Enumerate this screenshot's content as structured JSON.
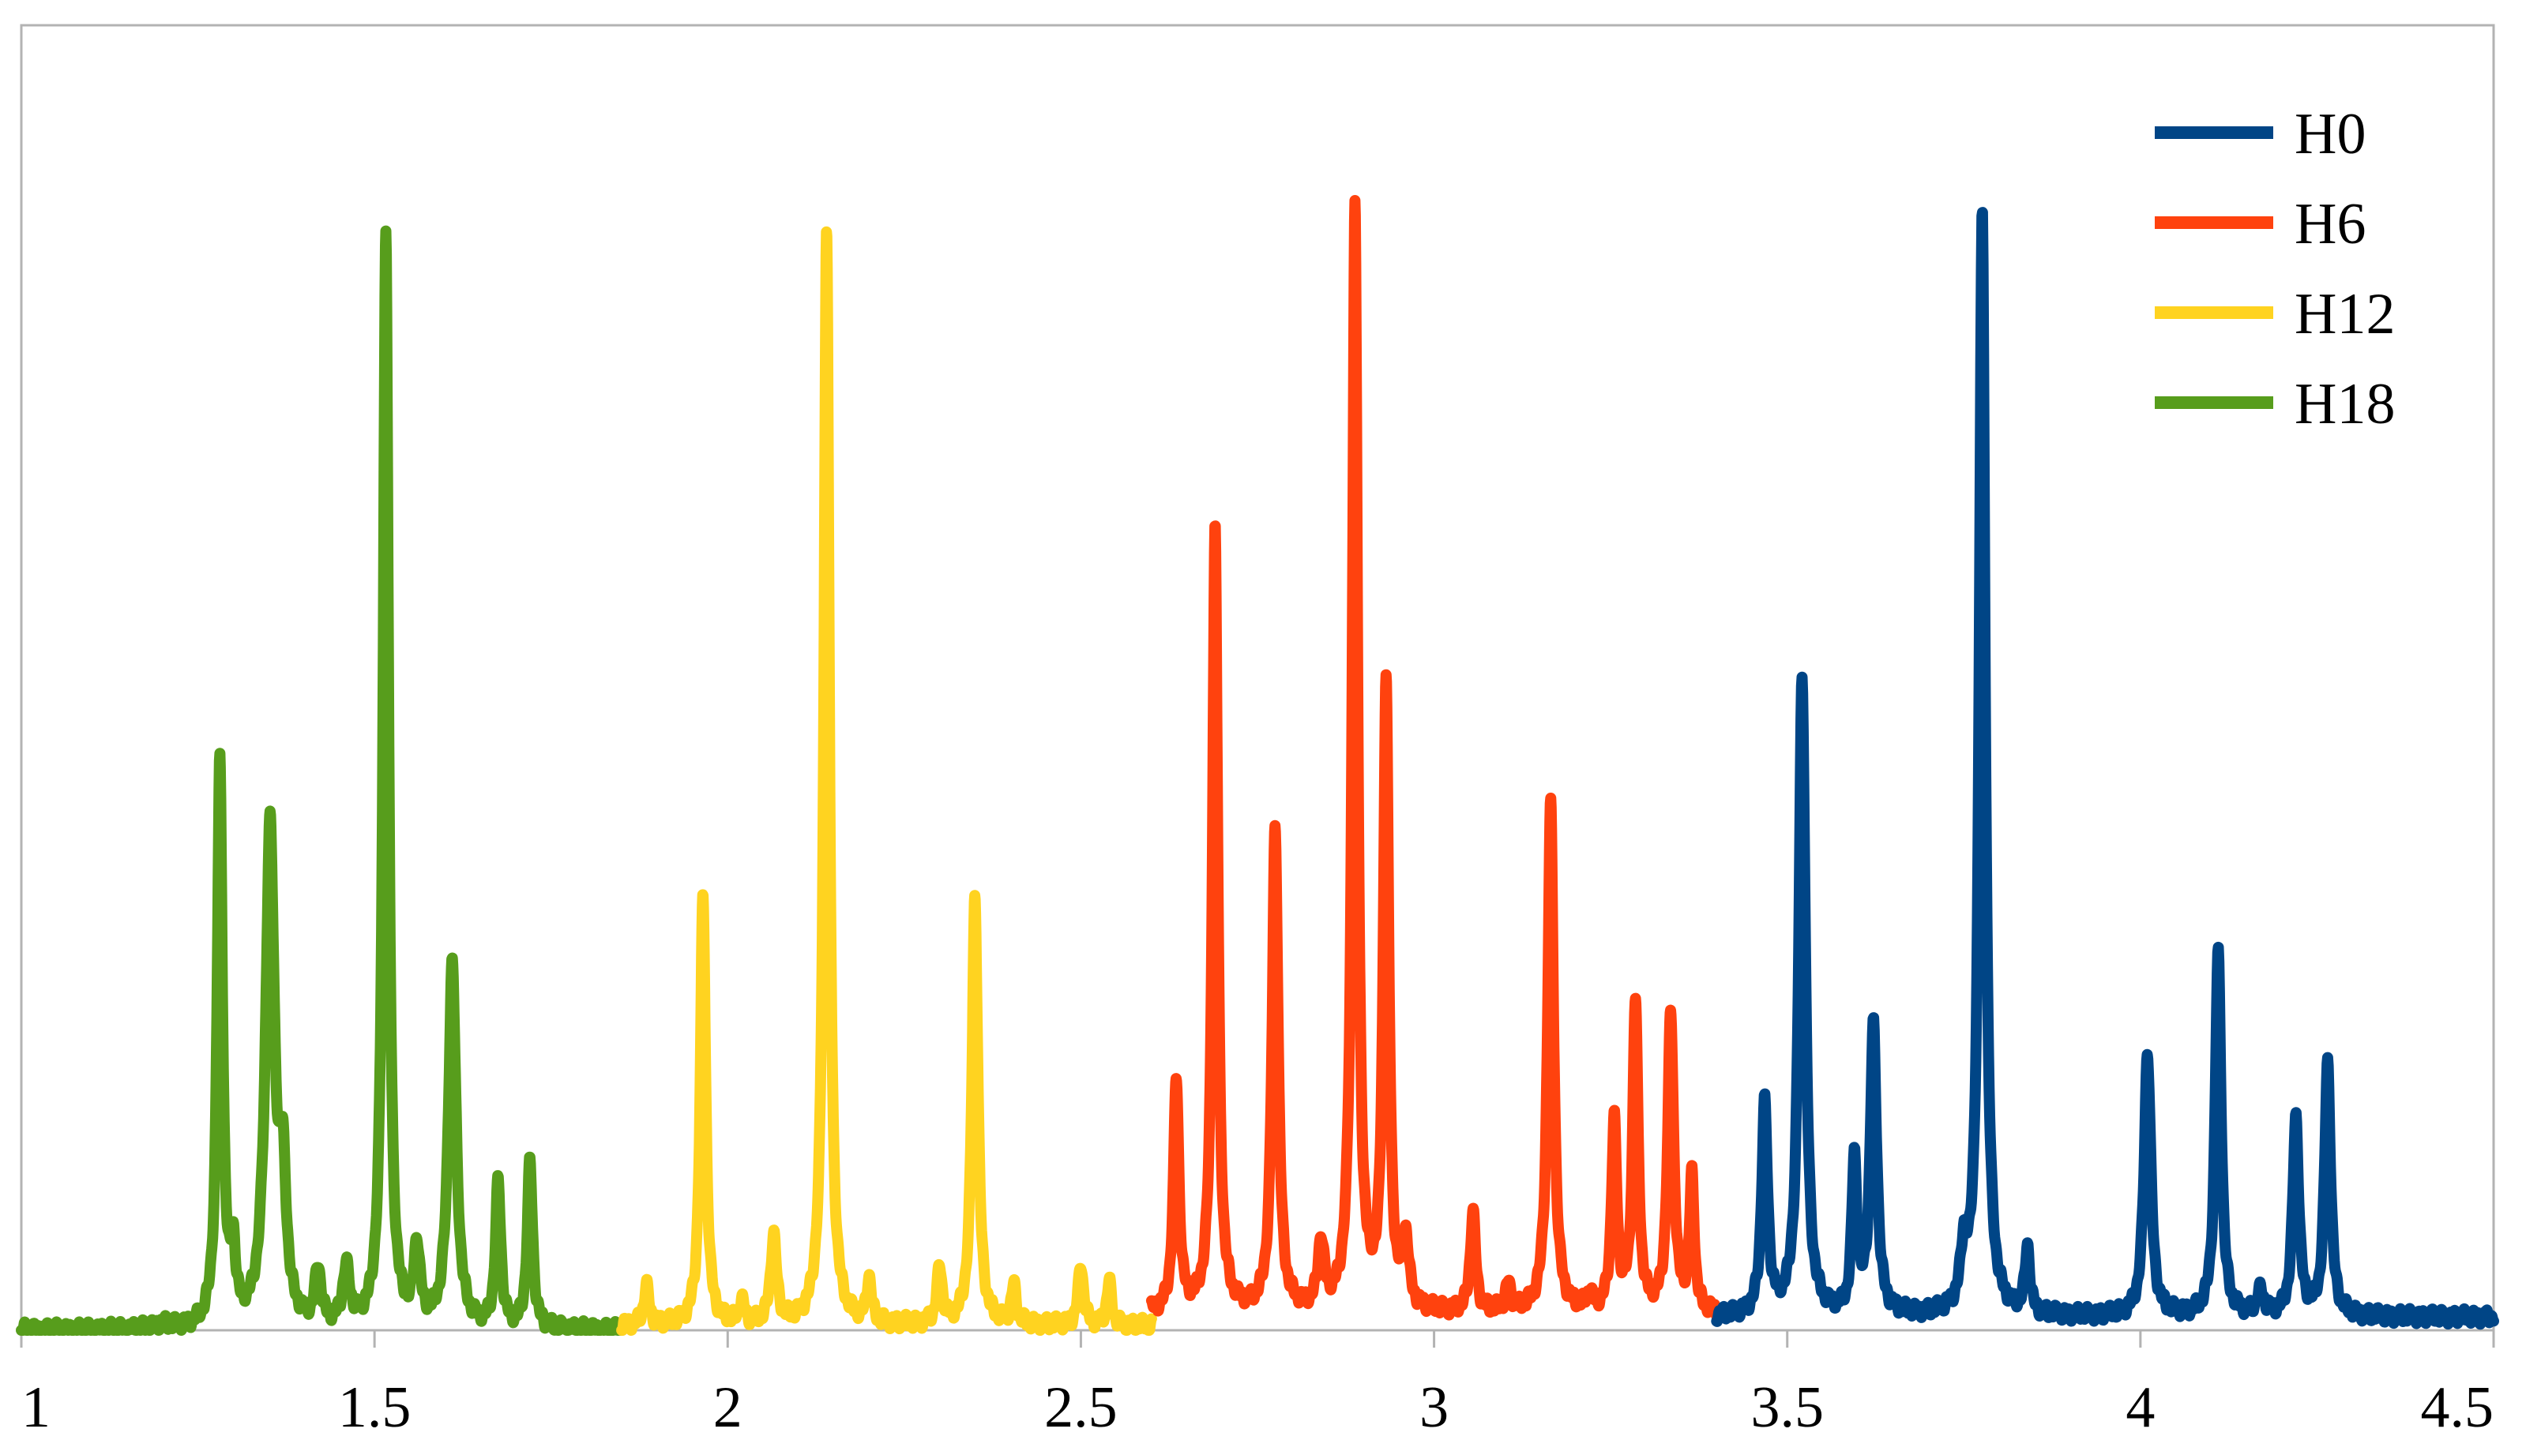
{
  "chart_data": {
    "type": "line",
    "title": "",
    "xlabel": "",
    "ylabel": "",
    "xlim": [
      1,
      4.5
    ],
    "ylim": [
      0,
      1.1
    ],
    "grid": false,
    "legend_position": "top-right",
    "x_ticks": [
      {
        "value": 1,
        "label": "1"
      },
      {
        "value": 1.5,
        "label": "1.5"
      },
      {
        "value": 2,
        "label": "2"
      },
      {
        "value": 2.5,
        "label": "2.5"
      },
      {
        "value": 3,
        "label": "3"
      },
      {
        "value": 3.5,
        "label": "3.5"
      },
      {
        "value": 4,
        "label": "4"
      },
      {
        "value": 4.5,
        "label": "4.5"
      }
    ],
    "series": [
      {
        "name": "H0",
        "color": "#004586",
        "x_range": [
          3.4,
          4.5
        ],
        "baseline": 0.012,
        "peaks": [
          {
            "x": 3.468,
            "h": 0.19,
            "w": 0.005
          },
          {
            "x": 3.521,
            "h": 0.58,
            "w": 0.0055
          },
          {
            "x": 3.595,
            "h": 0.14,
            "w": 0.004
          },
          {
            "x": 3.622,
            "h": 0.26,
            "w": 0.0055
          },
          {
            "x": 3.75,
            "h": 0.05,
            "w": 0.005
          },
          {
            "x": 3.776,
            "h": 1.0,
            "w": 0.005
          },
          {
            "x": 3.84,
            "h": 0.06,
            "w": 0.004
          },
          {
            "x": 4.01,
            "h": 0.24,
            "w": 0.0055
          },
          {
            "x": 4.11,
            "h": 0.33,
            "w": 0.005
          },
          {
            "x": 4.17,
            "h": 0.02,
            "w": 0.006
          },
          {
            "x": 4.22,
            "h": 0.18,
            "w": 0.005
          },
          {
            "x": 4.265,
            "h": 0.23,
            "w": 0.005
          }
        ]
      },
      {
        "name": "H6",
        "color": "#ff420e",
        "x_range": [
          2.6,
          3.4
        ],
        "baseline": 0.015,
        "peaks": [
          {
            "x": 2.635,
            "h": 0.21,
            "w": 0.0045
          },
          {
            "x": 2.69,
            "h": 0.71,
            "w": 0.0045
          },
          {
            "x": 2.775,
            "h": 0.44,
            "w": 0.005
          },
          {
            "x": 2.84,
            "h": 0.06,
            "w": 0.005
          },
          {
            "x": 2.888,
            "h": 1.0,
            "w": 0.0045
          },
          {
            "x": 2.932,
            "h": 0.57,
            "w": 0.0045
          },
          {
            "x": 2.96,
            "h": 0.06,
            "w": 0.005
          },
          {
            "x": 3.055,
            "h": 0.09,
            "w": 0.0045
          },
          {
            "x": 3.105,
            "h": 0.025,
            "w": 0.004
          },
          {
            "x": 3.165,
            "h": 0.46,
            "w": 0.005
          },
          {
            "x": 3.22,
            "h": 0.015,
            "w": 0.004
          },
          {
            "x": 3.255,
            "h": 0.17,
            "w": 0.0045
          },
          {
            "x": 3.285,
            "h": 0.28,
            "w": 0.0045
          },
          {
            "x": 3.335,
            "h": 0.27,
            "w": 0.005
          },
          {
            "x": 3.365,
            "h": 0.12,
            "w": 0.004
          }
        ]
      },
      {
        "name": "H12",
        "color": "#ffd320",
        "x_range": [
          1.85,
          2.6
        ],
        "baseline": 0.004,
        "peaks": [
          {
            "x": 1.885,
            "h": 0.035,
            "w": 0.0045
          },
          {
            "x": 1.965,
            "h": 0.39,
            "w": 0.0045
          },
          {
            "x": 2.02,
            "h": 0.02,
            "w": 0.004
          },
          {
            "x": 2.065,
            "h": 0.08,
            "w": 0.005
          },
          {
            "x": 2.14,
            "h": 1.0,
            "w": 0.0045
          },
          {
            "x": 2.2,
            "h": 0.04,
            "w": 0.004
          },
          {
            "x": 2.3,
            "h": 0.05,
            "w": 0.0045
          },
          {
            "x": 2.35,
            "h": 0.39,
            "w": 0.005
          },
          {
            "x": 2.405,
            "h": 0.035,
            "w": 0.004
          },
          {
            "x": 2.5,
            "h": 0.055,
            "w": 0.0045
          },
          {
            "x": 2.54,
            "h": 0.04,
            "w": 0.004
          }
        ]
      },
      {
        "name": "H18",
        "color": "#579d1c",
        "x_range": [
          1.0,
          1.85
        ],
        "baseline": 0.0,
        "peaks": [
          {
            "x": 1.2,
            "h": 0.004,
            "w": 0.01
          },
          {
            "x": 1.281,
            "h": 0.51,
            "w": 0.0045
          },
          {
            "x": 1.3,
            "h": 0.06,
            "w": 0.004
          },
          {
            "x": 1.352,
            "h": 0.45,
            "w": 0.0075
          },
          {
            "x": 1.37,
            "h": 0.12,
            "w": 0.006
          },
          {
            "x": 1.42,
            "h": 0.05,
            "w": 0.005
          },
          {
            "x": 1.46,
            "h": 0.05,
            "w": 0.006
          },
          {
            "x": 1.516,
            "h": 1.0,
            "w": 0.0045
          },
          {
            "x": 1.56,
            "h": 0.07,
            "w": 0.005
          },
          {
            "x": 1.61,
            "h": 0.33,
            "w": 0.0065
          },
          {
            "x": 1.675,
            "h": 0.13,
            "w": 0.0045
          },
          {
            "x": 1.72,
            "h": 0.15,
            "w": 0.0045
          }
        ]
      }
    ]
  }
}
